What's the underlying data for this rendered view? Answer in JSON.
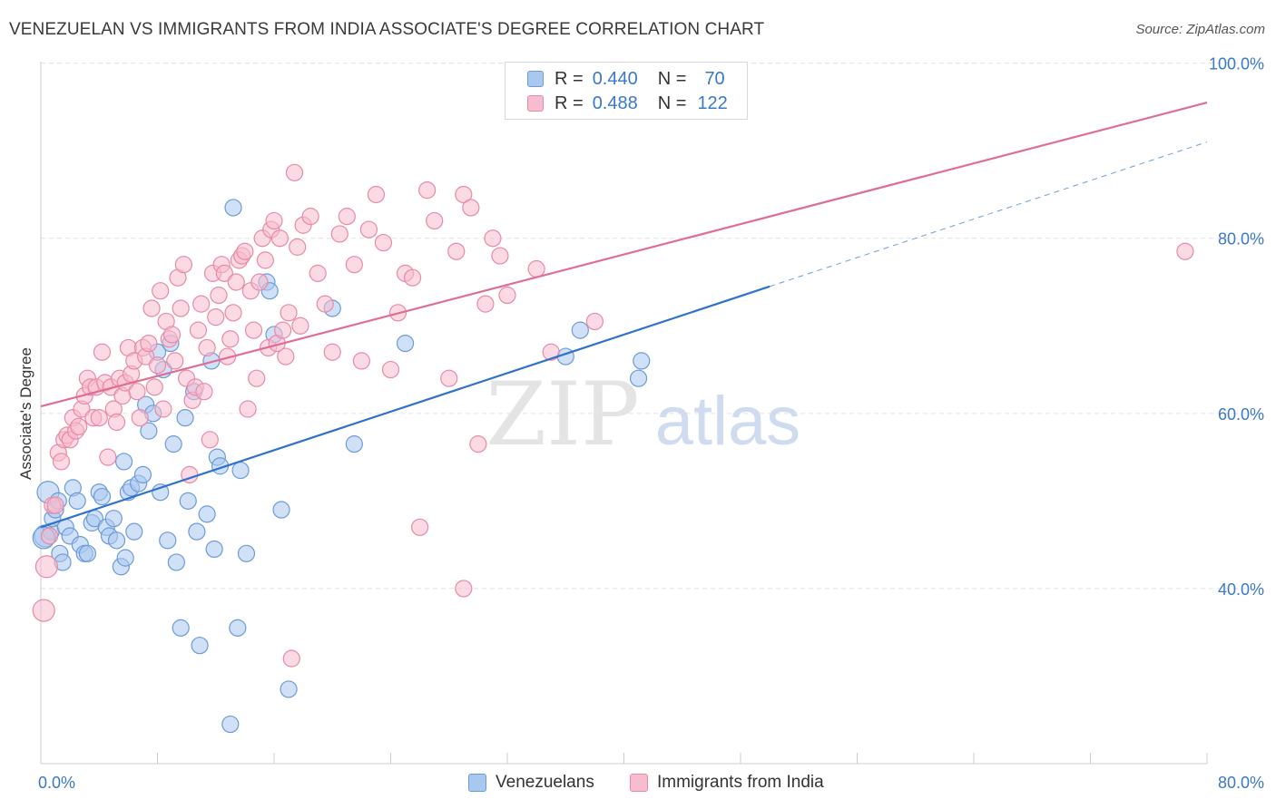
{
  "title": "VENEZUELAN VS IMMIGRANTS FROM INDIA ASSOCIATE'S DEGREE CORRELATION CHART",
  "source": "Source: ZipAtlas.com",
  "watermark": {
    "zip": "ZIP",
    "atlas": "atlas"
  },
  "legend_top": [
    {
      "r_label": "R =",
      "r_value": "0.440",
      "n_label": "N =",
      "n_value": "70",
      "color": "#a9c8f0",
      "border": "#6b9bd8"
    },
    {
      "r_label": "R =",
      "r_value": "0.488",
      "n_label": "N =",
      "n_value": "122",
      "color": "#f7bccd",
      "border": "#e88aa6"
    }
  ],
  "legend_bottom": [
    {
      "label": "Venezuelans",
      "color": "#a9c8f0",
      "border": "#6b9bd8"
    },
    {
      "label": "Immigrants from India",
      "color": "#f7bccd",
      "border": "#e88aa6"
    }
  ],
  "chart_data": {
    "type": "scatter",
    "ylabel": "Associate's Degree",
    "xlabel": "",
    "xlim": [
      0,
      80
    ],
    "ylim": [
      20,
      101
    ],
    "x_ticks": [
      {
        "value": 0,
        "label": "0.0%"
      },
      {
        "value": 80,
        "label": "80.0%"
      }
    ],
    "y_ticks": [
      {
        "value": 40,
        "label": "40.0%"
      },
      {
        "value": 60,
        "label": "60.0%"
      },
      {
        "value": 80,
        "label": "80.0%"
      },
      {
        "value": 100,
        "label": "100.0%"
      }
    ],
    "grid": true,
    "series": [
      {
        "name": "Venezuelans",
        "color": "#6b9bd8",
        "fill": "#a9c8f0",
        "line_color": "#2f72cc",
        "trend": {
          "x0": 0,
          "y0": 47.0,
          "x1": 50,
          "y1": 74.5,
          "dash_x1": 80,
          "dash_y1": 91.0
        },
        "points": [
          [
            0.3,
            46
          ],
          [
            0.5,
            51
          ],
          [
            0.7,
            46.5
          ],
          [
            0.8,
            48
          ],
          [
            1,
            49
          ],
          [
            1.2,
            50
          ],
          [
            1.3,
            44
          ],
          [
            1.5,
            43
          ],
          [
            1.7,
            47
          ],
          [
            2,
            46
          ],
          [
            2.2,
            51.5
          ],
          [
            2.5,
            50
          ],
          [
            2.7,
            45
          ],
          [
            3,
            44
          ],
          [
            3.2,
            44
          ],
          [
            3.5,
            47.5
          ],
          [
            3.7,
            48
          ],
          [
            4,
            51
          ],
          [
            4.2,
            50.5
          ],
          [
            4.5,
            47
          ],
          [
            4.7,
            46
          ],
          [
            5,
            48
          ],
          [
            5.2,
            45.5
          ],
          [
            5.5,
            42.5
          ],
          [
            5.7,
            54.5
          ],
          [
            5.8,
            43.5
          ],
          [
            6,
            51
          ],
          [
            6.2,
            51.5
          ],
          [
            6.4,
            46.5
          ],
          [
            6.7,
            52
          ],
          [
            7,
            53
          ],
          [
            7.2,
            61
          ],
          [
            7.4,
            58
          ],
          [
            7.7,
            60
          ],
          [
            8,
            67
          ],
          [
            8.2,
            51
          ],
          [
            8.4,
            65
          ],
          [
            8.7,
            45.5
          ],
          [
            8.9,
            68
          ],
          [
            9.1,
            56.5
          ],
          [
            9.3,
            43
          ],
          [
            9.6,
            35.5
          ],
          [
            9.9,
            59.5
          ],
          [
            10.1,
            50
          ],
          [
            10.5,
            62.5
          ],
          [
            10.7,
            46.5
          ],
          [
            10.9,
            33.5
          ],
          [
            11.4,
            48.5
          ],
          [
            11.7,
            66
          ],
          [
            11.9,
            44.5
          ],
          [
            12.1,
            55
          ],
          [
            12.3,
            54
          ],
          [
            13,
            24.5
          ],
          [
            13.2,
            83.5
          ],
          [
            13.5,
            35.5
          ],
          [
            13.7,
            53.5
          ],
          [
            14.1,
            44
          ],
          [
            15.5,
            75
          ],
          [
            15.7,
            74
          ],
          [
            16,
            69
          ],
          [
            16.5,
            49
          ],
          [
            17,
            28.5
          ],
          [
            20,
            72
          ],
          [
            21.5,
            56.5
          ],
          [
            25,
            68
          ],
          [
            36,
            66.5
          ],
          [
            37,
            69.5
          ],
          [
            41,
            64
          ],
          [
            41.2,
            66
          ],
          [
            0.2,
            45.8
          ]
        ]
      },
      {
        "name": "Immigrants from India",
        "color": "#e88aa6",
        "fill": "#f7bccd",
        "line_color": "#e06d95",
        "trend": {
          "x0": 0,
          "y0": 60.8,
          "x1": 80,
          "y1": 95.5
        },
        "points": [
          [
            0.2,
            37.5
          ],
          [
            0.4,
            42.5
          ],
          [
            0.6,
            46
          ],
          [
            0.8,
            49.5
          ],
          [
            1,
            49.5
          ],
          [
            1.2,
            55.5
          ],
          [
            1.4,
            54.5
          ],
          [
            1.6,
            57
          ],
          [
            1.8,
            57.5
          ],
          [
            2,
            57
          ],
          [
            2.2,
            59.5
          ],
          [
            2.4,
            58
          ],
          [
            2.6,
            58.5
          ],
          [
            2.8,
            60.5
          ],
          [
            3,
            62
          ],
          [
            3.2,
            64
          ],
          [
            3.4,
            63
          ],
          [
            3.6,
            59.5
          ],
          [
            3.8,
            63
          ],
          [
            4,
            59.5
          ],
          [
            4.2,
            67
          ],
          [
            4.4,
            63.5
          ],
          [
            4.6,
            55
          ],
          [
            4.8,
            63
          ],
          [
            5,
            60.5
          ],
          [
            5.2,
            59
          ],
          [
            5.4,
            64
          ],
          [
            5.6,
            62
          ],
          [
            5.8,
            63.5
          ],
          [
            6,
            67.5
          ],
          [
            6.2,
            64.5
          ],
          [
            6.4,
            66
          ],
          [
            6.6,
            62.5
          ],
          [
            6.8,
            59.5
          ],
          [
            7,
            67.5
          ],
          [
            7.2,
            66.5
          ],
          [
            7.4,
            68
          ],
          [
            7.6,
            72
          ],
          [
            7.8,
            63
          ],
          [
            8,
            65.5
          ],
          [
            8.2,
            74
          ],
          [
            8.4,
            60.5
          ],
          [
            8.6,
            70.5
          ],
          [
            8.8,
            68.5
          ],
          [
            9,
            69
          ],
          [
            9.2,
            66
          ],
          [
            9.4,
            75.5
          ],
          [
            9.6,
            72
          ],
          [
            9.8,
            77
          ],
          [
            10,
            64
          ],
          [
            10.2,
            53
          ],
          [
            10.4,
            61.5
          ],
          [
            10.6,
            63
          ],
          [
            10.8,
            69.5
          ],
          [
            11,
            72.5
          ],
          [
            11.2,
            62.5
          ],
          [
            11.4,
            67.5
          ],
          [
            11.6,
            57
          ],
          [
            11.8,
            76
          ],
          [
            12,
            71
          ],
          [
            12.2,
            73.5
          ],
          [
            12.4,
            77
          ],
          [
            12.6,
            76
          ],
          [
            12.8,
            66.5
          ],
          [
            13,
            68.5
          ],
          [
            13.2,
            71.5
          ],
          [
            13.4,
            75
          ],
          [
            13.6,
            77.5
          ],
          [
            13.8,
            78
          ],
          [
            14,
            78.5
          ],
          [
            14.2,
            60.5
          ],
          [
            14.4,
            74
          ],
          [
            14.6,
            69.5
          ],
          [
            14.8,
            64
          ],
          [
            15,
            75
          ],
          [
            15.2,
            80
          ],
          [
            15.4,
            77.5
          ],
          [
            15.6,
            67.5
          ],
          [
            15.8,
            81
          ],
          [
            16,
            82
          ],
          [
            16.2,
            68
          ],
          [
            16.4,
            80
          ],
          [
            16.6,
            69.5
          ],
          [
            16.8,
            66.5
          ],
          [
            17,
            71.5
          ],
          [
            17.2,
            32
          ],
          [
            17.4,
            87.5
          ],
          [
            17.6,
            79
          ],
          [
            17.8,
            70
          ],
          [
            18,
            81.5
          ],
          [
            18.5,
            82.5
          ],
          [
            19,
            76
          ],
          [
            19.5,
            72.5
          ],
          [
            20,
            67
          ],
          [
            20.5,
            80.5
          ],
          [
            21,
            82.5
          ],
          [
            21.5,
            77
          ],
          [
            22,
            66
          ],
          [
            22.5,
            81
          ],
          [
            23,
            85
          ],
          [
            23.5,
            79.5
          ],
          [
            24,
            65
          ],
          [
            24.5,
            71.5
          ],
          [
            25,
            76
          ],
          [
            25.5,
            75.5
          ],
          [
            26,
            47
          ],
          [
            26.5,
            85.5
          ],
          [
            27,
            82
          ],
          [
            28,
            64
          ],
          [
            28.5,
            78.5
          ],
          [
            29,
            85
          ],
          [
            29.5,
            83.5
          ],
          [
            30,
            56.5
          ],
          [
            30.5,
            72.5
          ],
          [
            31,
            80
          ],
          [
            31.5,
            78
          ],
          [
            34,
            76.5
          ],
          [
            35,
            67
          ],
          [
            38,
            70.5
          ],
          [
            78.5,
            78.5
          ],
          [
            29,
            40
          ],
          [
            32,
            73.5
          ]
        ]
      }
    ]
  }
}
